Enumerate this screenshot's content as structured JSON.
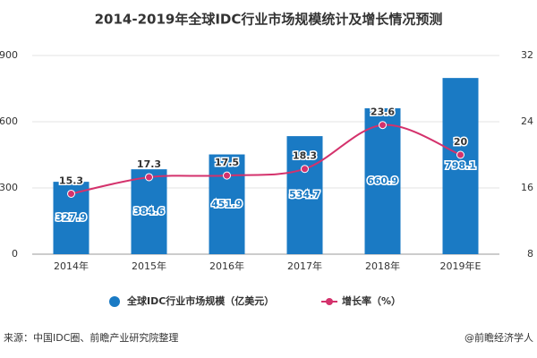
{
  "chart_data": {
    "type": "bar-line",
    "title": "2014-2019年全球IDC行业市场规模统计及增长情况预测",
    "categories": [
      "2014年",
      "2015年",
      "2016年",
      "2017年",
      "2018年",
      "2019年E"
    ],
    "series": [
      {
        "name": "全球IDC行业市场规模（亿美元）",
        "type": "bar",
        "color": "#1a7ac4",
        "values": [
          327.9,
          384.6,
          451.9,
          534.7,
          660.9,
          798.1
        ]
      },
      {
        "name": "增长率（%）",
        "type": "line",
        "axis": "y2",
        "color": "#d4326c",
        "values": [
          15.3,
          17.3,
          17.5,
          18.3,
          23.6,
          20
        ]
      }
    ],
    "ylim": [
      0,
      900
    ],
    "yticks": [
      0,
      300,
      600,
      900
    ],
    "y2lim": [
      8,
      32
    ],
    "y2ticks": [
      8,
      16,
      24,
      32
    ],
    "source": "来源：中国IDC圈、前瞻产业研究院整理",
    "credit": "@前瞻经济学人"
  }
}
